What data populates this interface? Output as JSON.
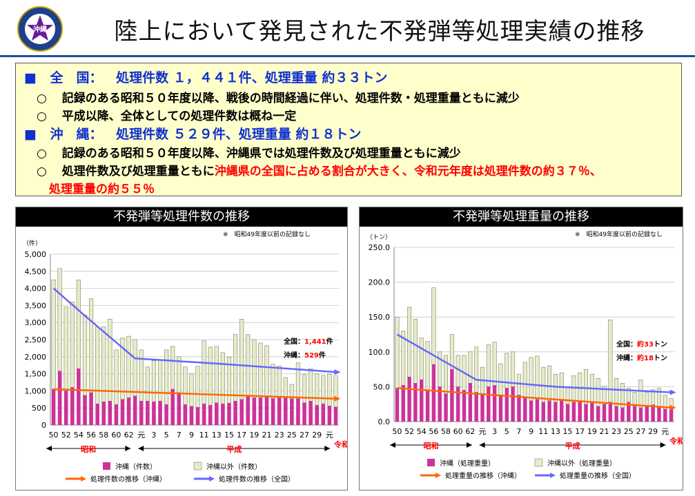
{
  "header": {
    "title": "陸上において発見された不発弾等処理実績の推移",
    "logo_text": "沖縄"
  },
  "summary": {
    "national": {
      "marker": "■",
      "label": "全　国：",
      "stats": "処理件数 １，４４１件、処理重量 約３３トン"
    },
    "national_points": [
      "記録のある昭和５０年度以降、戦後の時間経過に伴い、処理件数・処理重量ともに減少",
      "平成以降、全体としての処理件数は概ね一定"
    ],
    "okinawa": {
      "marker": "■",
      "label": "沖　縄：",
      "stats": "処理件数 ５２９件、処理重量 約１８トン"
    },
    "okinawa_point1": "記録のある昭和５０年度以降、沖縄県では処理件数及び処理重量ともに減少",
    "okinawa_point2_black": "処理件数及び処理重量ともに",
    "okinawa_point2_red": "沖縄県の全国に占める割合が大きく、令和元年度は処理件数の約３７％、",
    "okinawa_point2_red_cont": "処理重量の約５５％",
    "bullet": "○"
  },
  "colors": {
    "okinawa_bar": "#cc3399",
    "other_bar": "#e6ecc8",
    "okinawa_line": "#ff6600",
    "national_line": "#6666ff",
    "accent_blue": "#1030d0",
    "red": "#ff0000"
  },
  "chart_data": [
    {
      "type": "bar",
      "title": "不発弾等処理件数の推移",
      "note": "※　昭和49年度以前の記録なし",
      "yunit": "（件）",
      "ylim": [
        0,
        5000
      ],
      "yticks": [
        "0",
        "500",
        "1,000",
        "1,500",
        "2,000",
        "2,500",
        "3,000",
        "3,500",
        "4,000",
        "4,500",
        "5,000"
      ],
      "x_tick_labels": [
        "50",
        "52",
        "54",
        "56",
        "58",
        "60",
        "62",
        "元",
        "3",
        "5",
        "7",
        "9",
        "11",
        "13",
        "15",
        "17",
        "19",
        "21",
        "23",
        "25",
        "27",
        "29",
        "元"
      ],
      "era_labels": [
        "昭和",
        "平成",
        "令和"
      ],
      "series": [
        {
          "name": "沖縄（件数）",
          "values": [
            1050,
            1580,
            1000,
            1100,
            1650,
            870,
            950,
            620,
            680,
            700,
            600,
            750,
            800,
            850,
            700,
            700,
            680,
            700,
            600,
            1050,
            950,
            600,
            550,
            520,
            620,
            580,
            650,
            620,
            640,
            700,
            750,
            850,
            800,
            800,
            820,
            780,
            810,
            790,
            770,
            770,
            650,
            700,
            580,
            620,
            560,
            529
          ]
        },
        {
          "name": "沖縄以外（件数）",
          "values": [
            3200,
            3000,
            2450,
            2500,
            2600,
            2350,
            2750,
            2250,
            2200,
            2400,
            1600,
            1800,
            1800,
            1650,
            1500,
            1000,
            1200,
            1200,
            1600,
            1250,
            1050,
            1100,
            950,
            1200,
            1850,
            1700,
            1650,
            1500,
            1350,
            1950,
            2350,
            1800,
            1700,
            1600,
            1500,
            1000,
            920,
            600,
            420,
            1050,
            830,
            950,
            920,
            830,
            930,
            912
          ]
        },
        {
          "name": "処理件数の推移（沖縄）",
          "values": [
            1050,
            770
          ]
        },
        {
          "name": "処理件数の推移（全国）",
          "values": [
            4000,
            3200,
            1950,
            1800,
            1550
          ]
        }
      ],
      "annotation": {
        "national_label": "全国：",
        "national_value": "1,441",
        "national_unit": "件",
        "okinawa_label": "沖縄：",
        "okinawa_value": "529",
        "okinawa_unit": "件"
      },
      "legend": [
        "沖縄（件数）",
        "沖縄以外（件数）",
        "処理件数の推移（沖縄）",
        "処理件数の推移（全国）"
      ]
    },
    {
      "type": "bar",
      "title": "不発弾等処理重量の推移",
      "note": "※　昭和49年度以前の記録なし",
      "yunit": "（トン）",
      "ylim": [
        0,
        250
      ],
      "yticks": [
        "0.0",
        "50.0",
        "100.0",
        "150.0",
        "200.0",
        "250.0"
      ],
      "x_tick_labels": [
        "50",
        "52",
        "54",
        "56",
        "58",
        "60",
        "62",
        "元",
        "3",
        "5",
        "7",
        "9",
        "11",
        "13",
        "15",
        "17",
        "19",
        "21",
        "23",
        "25",
        "27",
        "29",
        "元"
      ],
      "era_labels": [
        "昭和",
        "平成",
        "令和"
      ],
      "series": [
        {
          "name": "沖縄（処理重量）",
          "values": [
            48,
            52,
            64,
            55,
            60,
            45,
            82,
            50,
            40,
            75,
            50,
            45,
            55,
            42,
            38,
            50,
            52,
            38,
            48,
            50,
            38,
            35,
            30,
            32,
            28,
            30,
            28,
            30,
            25,
            28,
            30,
            25,
            28,
            22,
            25,
            28,
            22,
            20,
            28,
            22,
            20,
            22,
            24,
            20,
            18,
            18
          ]
        },
        {
          "name": "沖縄以外（処理重量）",
          "values": [
            102,
            78,
            100,
            92,
            60,
            70,
            110,
            50,
            55,
            50,
            45,
            50,
            45,
            65,
            40,
            60,
            62,
            45,
            50,
            50,
            30,
            50,
            62,
            62,
            50,
            50,
            40,
            40,
            25,
            38,
            40,
            50,
            40,
            40,
            26,
            118,
            40,
            35,
            20,
            20,
            40,
            20,
            22,
            28,
            20,
            15
          ]
        },
        {
          "name": "処理重量の推移（沖縄）",
          "values": [
            48,
            20
          ]
        },
        {
          "name": "処理重量の推移（全国）",
          "values": [
            125,
            100,
            60,
            50,
            42
          ]
        }
      ],
      "annotation": {
        "national_label": "全国：",
        "national_value": "約33",
        "national_unit": "トン",
        "okinawa_label": "沖縄：",
        "okinawa_value": "約18",
        "okinawa_unit": "トン"
      },
      "legend": [
        "沖縄（処理重量）",
        "沖縄以外（処理重量）",
        "処理重量の推移（沖縄）",
        "処理重量の推移（全国）"
      ]
    }
  ]
}
